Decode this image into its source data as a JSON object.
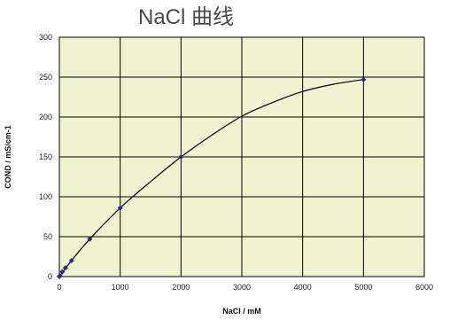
{
  "chart_data": {
    "type": "line",
    "title": "NaCl 曲线",
    "xlabel": "NaCl / mM",
    "ylabel": "COND / mS/cm-1",
    "xlim": [
      0,
      6000
    ],
    "ylim": [
      0,
      300
    ],
    "x_ticks": [
      "0",
      "1000",
      "2000",
      "3000",
      "4000",
      "5000",
      "6000"
    ],
    "y_ticks": [
      "0",
      "50",
      "100",
      "150",
      "200",
      "250",
      "300"
    ],
    "grid": true,
    "legend": "none",
    "colors": {
      "plot_background": "#f0f3d1",
      "marker": "#2a2f7a",
      "line": "#000000",
      "grid": "#000000"
    },
    "series": [
      {
        "x": [
          0,
          10,
          50,
          100,
          200,
          500,
          1000,
          2000,
          5000
        ],
        "y": [
          0,
          1,
          6,
          11,
          20,
          47,
          86,
          150,
          247
        ]
      }
    ],
    "curve": {
      "x": [
        0,
        200,
        500,
        1000,
        1500,
        2000,
        2500,
        3000,
        3500,
        4000,
        4500,
        5000
      ],
      "y": [
        0,
        20,
        47,
        86,
        119,
        150,
        177,
        201,
        218,
        232,
        241,
        247
      ]
    }
  }
}
